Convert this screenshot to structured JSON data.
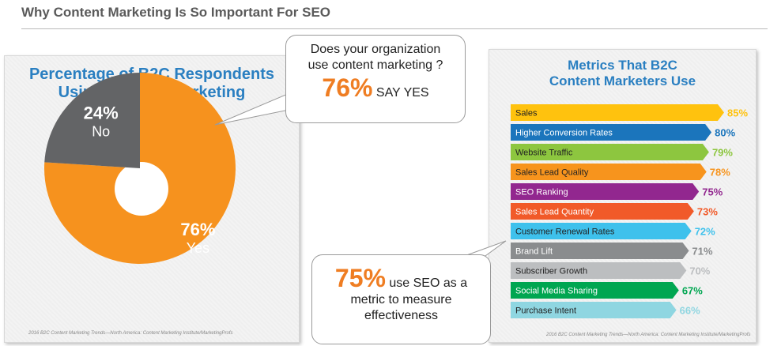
{
  "page_title": "Why Content Marketing Is So Important For SEO",
  "left_panel": {
    "title_line1": "Percentage of B2C Respondents",
    "title_line2": "Using Content Marketing",
    "credit": "2016 B2C Content Marketing Trends—North America: Content Marketing Institute/MarketingProfs"
  },
  "right_panel": {
    "title_line1": "Metrics That B2C",
    "title_line2": "Content Marketers Use",
    "credit": "2016 B2C Content Marketing Trends—North America: Content Marketing Institute/MarketingProfs"
  },
  "bubble_top": {
    "question_line1": "Does your organization",
    "question_line2": "use content marketing ?",
    "big_value": "76%",
    "say_text": "SAY YES"
  },
  "bubble_bottom": {
    "big_value": "75%",
    "text_line1": "use SEO as a",
    "text_line2": "metric to measure",
    "text_line3": "effectiveness"
  },
  "colors": {
    "accent_blue": "#2a7fc1",
    "orange": "#f6921e",
    "gray": "#636466"
  },
  "chart_data": [
    {
      "type": "pie",
      "title": "Percentage of B2C Respondents Using Content Marketing",
      "slices": [
        {
          "label": "Yes",
          "value": 76,
          "value_label": "76%",
          "color": "#f6921e"
        },
        {
          "label": "No",
          "value": 24,
          "value_label": "24%",
          "color": "#636466"
        }
      ]
    },
    {
      "type": "bar",
      "orientation": "horizontal",
      "title": "Metrics That B2C Content Marketers Use",
      "categories": [
        "Sales",
        "Higher Conversion Rates",
        "Website Traffic",
        "Sales Lead Quality",
        "SEO Ranking",
        "Sales Lead Quantity",
        "Customer Renewal Rates",
        "Brand Lift",
        "Subscriber Growth",
        "Social Media Sharing",
        "Purchase Intent"
      ],
      "values": [
        85,
        80,
        79,
        78,
        75,
        73,
        72,
        71,
        70,
        67,
        66
      ],
      "value_labels": [
        "85%",
        "80%",
        "79%",
        "78%",
        "75%",
        "73%",
        "72%",
        "71%",
        "70%",
        "67%",
        "66%"
      ],
      "colors": [
        "#ffc20e",
        "#1b75bc",
        "#8dc63f",
        "#f7941d",
        "#92278f",
        "#f15a29",
        "#3ec1ec",
        "#8a8c8e",
        "#bcbec0",
        "#00a651",
        "#8fd6e1"
      ]
    }
  ]
}
